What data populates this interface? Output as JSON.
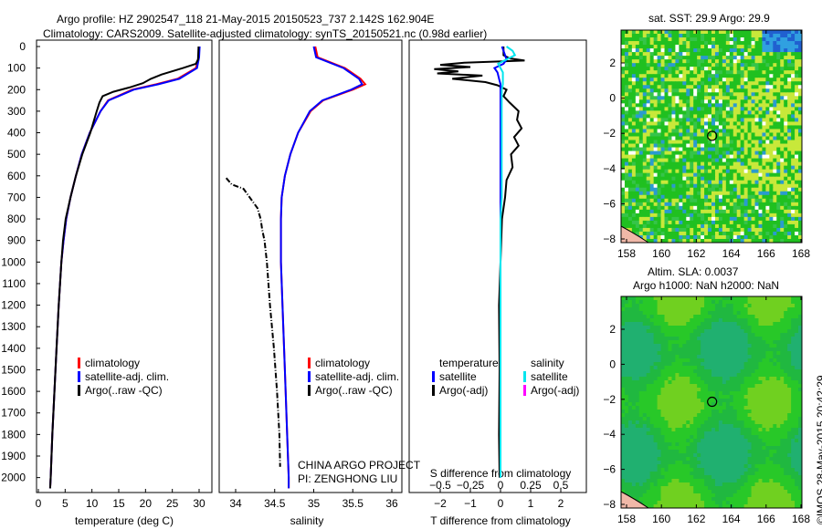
{
  "title_line1": "Argo profile: HZ 2902547_118 21-May-2015 20150523_737 2.142S 162.904E",
  "title_line2": "Climatology: CARS2009. Satellite-adjusted climatology: synTS_20150521.nc (0.98d earlier)",
  "side_label": "©IMOS 28-May-2015 20:42:29",
  "credits": [
    "CHINA ARGO PROJECT",
    "PI: ZENGHONG LIU"
  ],
  "colors": {
    "climatology": "#ff0000",
    "satellite": "#0000ff",
    "argo": "#000000",
    "sal_satellite": "#00e5ee",
    "sal_argo": "#ff00ff"
  },
  "chart_data": [
    {
      "type": "line",
      "name": "temperature",
      "xlabel": "temperature (deg C)",
      "xlim": [
        -1,
        31
      ],
      "ylim": [
        2080,
        0
      ],
      "xticks": [
        0,
        5,
        10,
        15,
        20,
        25,
        30
      ],
      "yticks": [
        0,
        100,
        200,
        300,
        400,
        500,
        600,
        700,
        800,
        900,
        1000,
        1100,
        1200,
        1300,
        1400,
        1500,
        1600,
        1700,
        1800,
        1900,
        2000
      ],
      "legend": [
        "climatology",
        "satellite-adj. clim.",
        "Argo(..raw -QC)"
      ],
      "depth": [
        0,
        50,
        100,
        150,
        175,
        200,
        250,
        300,
        400,
        500,
        600,
        700,
        800,
        900,
        1000,
        1200,
        1400,
        1600,
        1800,
        2000,
        2050
      ],
      "climatology": [
        30,
        29.9,
        29.4,
        26,
        22,
        17.5,
        13,
        11.6,
        9.6,
        8.1,
        7,
        6,
        5.2,
        4.7,
        4.3,
        3.8,
        3.4,
        3,
        2.6,
        2.3,
        2.2
      ],
      "satellite": [
        30.1,
        30,
        29.6,
        26.3,
        22.4,
        17.8,
        13.1,
        11.6,
        9.6,
        8.1,
        7,
        6,
        5.2,
        4.7,
        4.3,
        3.8,
        3.4,
        3,
        2.6,
        2.3,
        2.2
      ],
      "argo_depth": [
        0,
        60,
        80,
        100,
        130,
        150,
        170,
        190,
        210,
        230,
        260,
        300,
        400,
        500,
        600,
        700,
        800,
        900,
        1000,
        1200,
        1400,
        1600,
        1800,
        2000,
        2050
      ],
      "argo": [
        29.9,
        29.8,
        29.4,
        27,
        23,
        21,
        19.5,
        17,
        14,
        12,
        11.4,
        10.9,
        9.7,
        8.2,
        7,
        6,
        5.1,
        4.6,
        4.3,
        3.8,
        3.4,
        3,
        2.6,
        2.3,
        2.2
      ]
    },
    {
      "type": "line",
      "name": "salinity",
      "xlabel": "salinity",
      "xlim": [
        33.8,
        36.1
      ],
      "ylim": [
        2080,
        0
      ],
      "xticks": [
        34,
        34.5,
        35,
        35.5,
        36
      ],
      "legend": [
        "climatology",
        "satellite-adj. clim.",
        "Argo(..raw -QC)"
      ],
      "depth": [
        0,
        50,
        100,
        150,
        175,
        200,
        250,
        300,
        400,
        500,
        600,
        700,
        800,
        1000,
        1200,
        1500,
        1800,
        2000,
        2050
      ],
      "climatology": [
        35.02,
        35.05,
        35.4,
        35.6,
        35.66,
        35.5,
        35.12,
        34.96,
        34.8,
        34.7,
        34.63,
        34.59,
        34.58,
        34.58,
        34.6,
        34.63,
        34.66,
        34.68,
        34.68
      ],
      "satellite": [
        35.0,
        35.03,
        35.38,
        35.58,
        35.62,
        35.48,
        35.11,
        34.95,
        34.8,
        34.7,
        34.63,
        34.59,
        34.58,
        34.58,
        34.6,
        34.63,
        34.66,
        34.68,
        34.68
      ],
      "argo_depth": [
        610,
        640,
        660,
        700,
        750,
        800,
        850,
        900,
        1000,
        1200,
        1400,
        1600,
        1800,
        1950
      ],
      "argo": [
        33.88,
        33.95,
        34.1,
        34.18,
        34.28,
        34.32,
        34.34,
        34.37,
        34.4,
        34.44,
        34.49,
        34.53,
        34.56,
        34.57
      ]
    },
    {
      "type": "line",
      "name": "difference",
      "xlabel": "T difference from climatology",
      "x2label": "S difference from climatology",
      "xlim": [
        -3,
        3
      ],
      "xticks": [
        -2,
        -1,
        0,
        1,
        2
      ],
      "x2ticks": [
        -0.5,
        -0.25,
        0,
        0.25,
        0.5
      ],
      "ylim": [
        2080,
        0
      ],
      "legend_t": [
        "temperature",
        "satellite",
        "Argo(-adj)"
      ],
      "legend_s": [
        "salinity",
        "satellite",
        "Argo(-adj)"
      ],
      "depth": [
        0,
        20,
        40,
        60,
        80,
        100,
        120,
        150,
        175,
        200,
        250,
        300,
        350,
        400,
        500,
        600,
        700,
        800,
        1000,
        1500,
        2000
      ],
      "t_satellite": [
        0.05,
        0.1,
        0.15,
        0.2,
        0.1,
        -0.2,
        -0.1,
        -0.05,
        0,
        0,
        0,
        0,
        0,
        0,
        0,
        0,
        0,
        0,
        0,
        0,
        0
      ],
      "s_satellite": [
        0.05,
        0.1,
        0.12,
        0.05,
        -0.02,
        0,
        0.02,
        0.02,
        0.02,
        0.01,
        0.01,
        0.01,
        0.01,
        0.01,
        0.01,
        0.01,
        0.01,
        0,
        0,
        0,
        0
      ],
      "argo_t_depth": [
        0,
        40,
        55,
        65,
        75,
        85,
        95,
        105,
        115,
        125,
        135,
        150,
        165,
        180,
        200,
        230,
        260,
        300,
        340,
        380,
        420,
        460,
        500,
        560,
        620,
        700,
        800,
        1000,
        1200,
        1500,
        1800,
        2000
      ],
      "argo_t": [
        0.1,
        0.1,
        0.3,
        0.8,
        -1.2,
        -2.0,
        -1.0,
        -2.2,
        -1.4,
        -2.1,
        -0.6,
        -1.6,
        -0.5,
        -0.1,
        0.2,
        0.1,
        0.3,
        0.6,
        0.55,
        0.7,
        0.45,
        0.6,
        0.35,
        0.4,
        0.2,
        0.15,
        0.05,
        0,
        -0.05,
        -0.03,
        -0.05,
        -0.03
      ]
    },
    {
      "type": "heatmap",
      "name": "sst_map",
      "title": "sat. SST: 29.9 Argo: 29.9",
      "xticks": [
        158,
        160,
        162,
        164,
        166,
        168
      ],
      "yticks": [
        2,
        0,
        -2,
        -4,
        -6,
        -8
      ],
      "xlim": [
        157.7,
        168
      ],
      "ylim": [
        -8.2,
        3.5
      ],
      "marker": [
        162.904,
        -2.142
      ]
    },
    {
      "type": "heatmap",
      "name": "sla_map",
      "title": [
        "Altim. SLA: 0.0037",
        "Argo h1000: NaN h2000: NaN"
      ],
      "xticks": [
        158,
        160,
        162,
        164,
        166,
        168
      ],
      "yticks": [
        2,
        0,
        -2,
        -4,
        -6,
        -8
      ],
      "xlim": [
        157.7,
        168
      ],
      "ylim": [
        -8.2,
        3.5
      ],
      "marker": [
        162.904,
        -2.142
      ]
    }
  ]
}
